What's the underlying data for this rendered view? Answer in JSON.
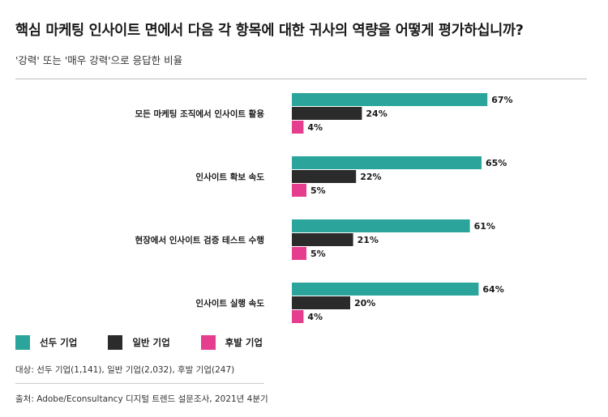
{
  "title": "핵심 마케팅 인사이트 면에서 다음 각 항목에 대한 귀사의 역량을 어떻게 평가하십니까?",
  "subtitle": "'강력' 또는 '매우 강력'으로 응답한 비율",
  "legend": [
    {
      "label": "선두 기업",
      "color": "#2ba59c"
    },
    {
      "label": "일반 기업",
      "color": "#2b2b2b"
    },
    {
      "label": "후발 기업",
      "color": "#e63e8f"
    }
  ],
  "base_note": "대상: 선두 기업(1,141), 일반 기업(2,032), 후발 기업(247)",
  "source": "출처: Adobe/Econsultancy 디지털 트렌드 설문조사, 2021년 4분기",
  "chart_data": {
    "type": "bar",
    "orientation": "horizontal",
    "categories": [
      "모든 마케팅 조직에서 인사이트 활용",
      "인사이트 확보 속도",
      "현장에서 인사이트 검증 테스트 수행",
      "인사이트 실행 속도"
    ],
    "series": [
      {
        "name": "선두 기업",
        "color": "#2ba59c",
        "values": [
          67,
          65,
          61,
          64
        ],
        "labels": [
          "67%",
          "65%",
          "61%",
          "64%"
        ]
      },
      {
        "name": "일반 기업",
        "color": "#2b2b2b",
        "values": [
          24,
          22,
          21,
          20
        ],
        "labels": [
          "24%",
          "22%",
          "21%",
          "20%"
        ]
      },
      {
        "name": "후발 기업",
        "color": "#e63e8f",
        "values": [
          4,
          5,
          5,
          4
        ],
        "labels": [
          "4%",
          "5%",
          "5%",
          "4%"
        ]
      }
    ],
    "unit": "%",
    "xlim": [
      0,
      100
    ],
    "grid": false,
    "legend_position": "bottom-left"
  }
}
